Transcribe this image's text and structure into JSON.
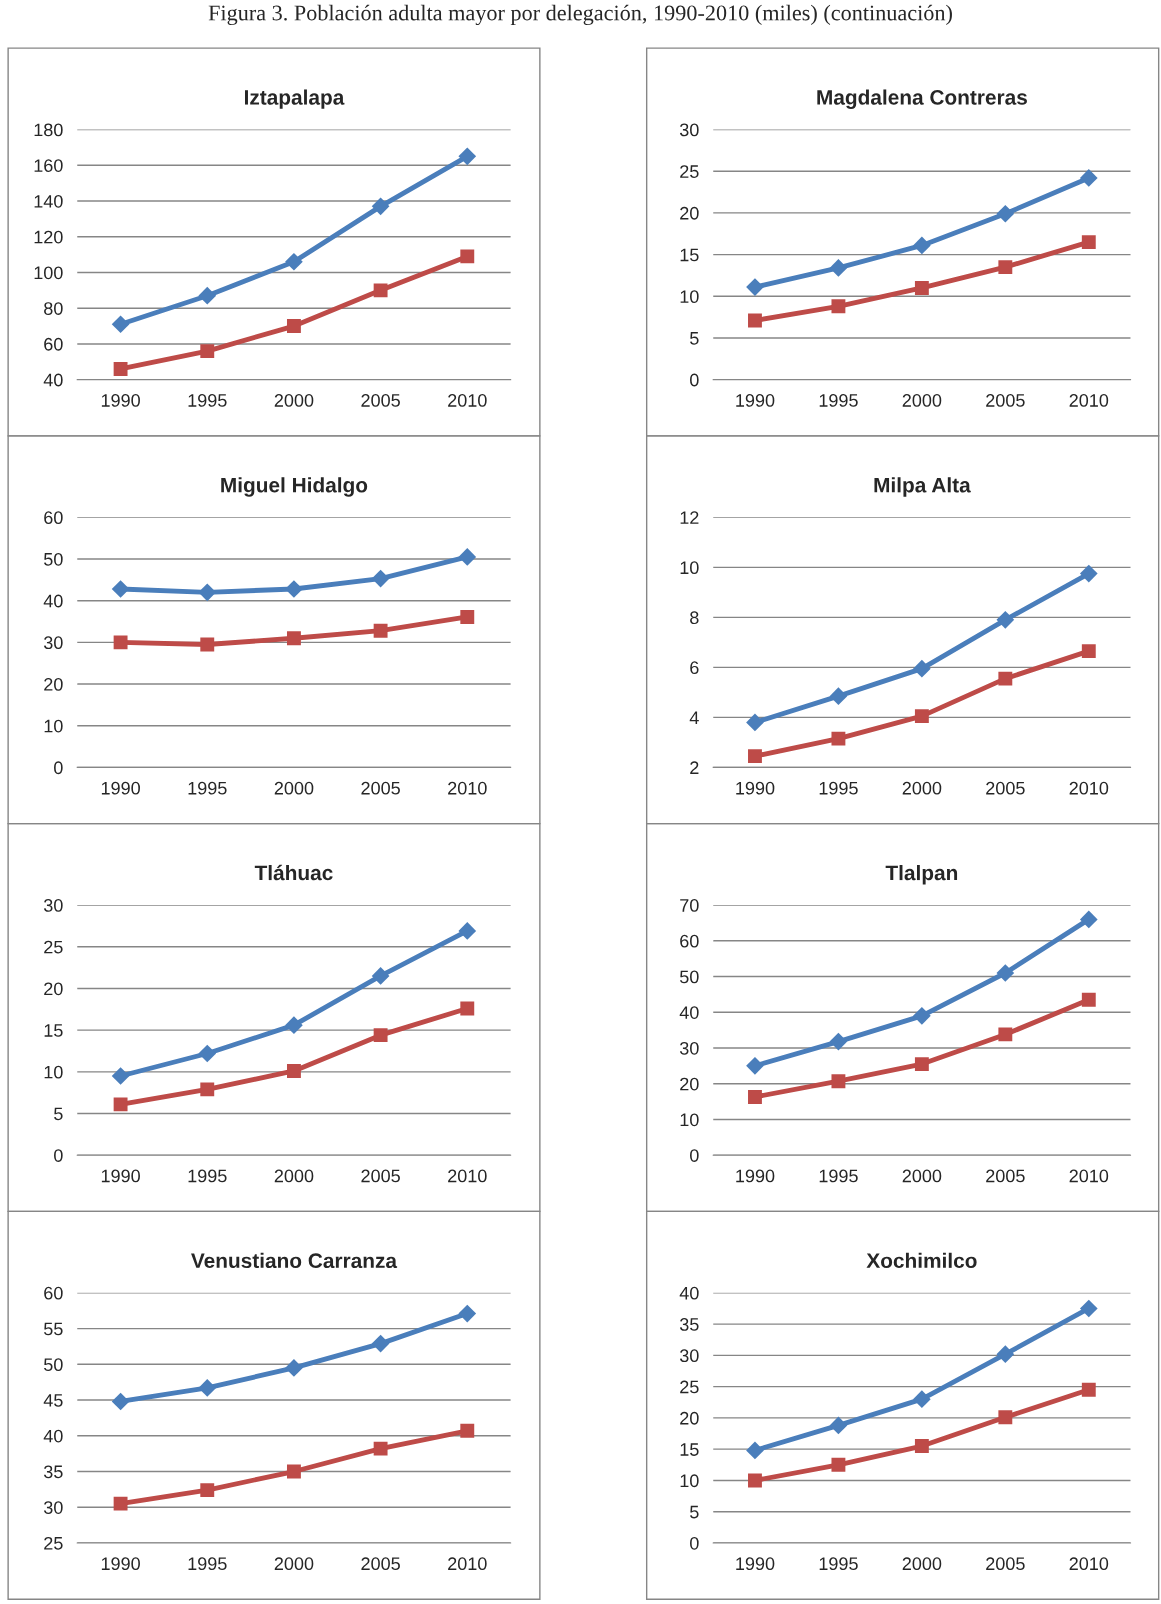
{
  "chart_data": [
    {
      "type": "line",
      "title": "Iztapalapa",
      "annotations": [
        "Figura 3. Población adulta mayor por delegación, 1990-2010 (miles) (continuación)"
      ],
      "categories": [
        "1990",
        "1995",
        "2000",
        "2005",
        "2010"
      ],
      "ylim": [
        40,
        180
      ],
      "yticks": [
        40,
        60,
        80,
        100,
        120,
        140,
        160,
        180
      ],
      "grid": "y",
      "series": [
        {
          "color": "#4a7ebb",
          "marker": "diamond",
          "values": [
            71,
            87,
            106,
            137,
            165
          ]
        },
        {
          "color": "#be4b48",
          "marker": "square",
          "values": [
            46,
            56,
            70,
            90,
            109
          ]
        }
      ]
    },
    {
      "type": "line",
      "title": "Magdalena Contreras",
      "categories": [
        "1990",
        "1995",
        "2000",
        "2005",
        "2010"
      ],
      "ylim": [
        0,
        30
      ],
      "yticks": [
        0,
        5,
        10,
        15,
        20,
        25,
        30
      ],
      "grid": "y",
      "series": [
        {
          "color": "#4a7ebb",
          "marker": "diamond",
          "values": [
            11.1,
            13.4,
            16.1,
            19.9,
            24.2
          ]
        },
        {
          "color": "#be4b48",
          "marker": "square",
          "values": [
            7.1,
            8.8,
            11.0,
            13.5,
            16.5
          ]
        }
      ]
    },
    {
      "type": "line",
      "title": "Miguel Hidalgo",
      "categories": [
        "1990",
        "1995",
        "2000",
        "2005",
        "2010"
      ],
      "ylim": [
        0,
        60
      ],
      "yticks": [
        0,
        10,
        20,
        30,
        40,
        50,
        60
      ],
      "grid": "y",
      "series": [
        {
          "color": "#4a7ebb",
          "marker": "diamond",
          "values": [
            42.8,
            42.0,
            42.8,
            45.3,
            50.5
          ]
        },
        {
          "color": "#be4b48",
          "marker": "square",
          "values": [
            30.0,
            29.5,
            31.0,
            32.8,
            36.1
          ]
        }
      ]
    },
    {
      "type": "line",
      "title": "Milpa Alta",
      "categories": [
        "1990",
        "1995",
        "2000",
        "2005",
        "2010"
      ],
      "ylim": [
        2,
        12
      ],
      "yticks": [
        2,
        4,
        6,
        8,
        10,
        12
      ],
      "grid": "y",
      "series": [
        {
          "color": "#4a7ebb",
          "marker": "diamond",
          "values": [
            3.8,
            4.85,
            5.95,
            7.9,
            9.75
          ]
        },
        {
          "color": "#be4b48",
          "marker": "square",
          "values": [
            2.45,
            3.15,
            4.05,
            5.55,
            6.65
          ]
        }
      ]
    },
    {
      "type": "line",
      "title": "Tláhuac",
      "categories": [
        "1990",
        "1995",
        "2000",
        "2005",
        "2010"
      ],
      "ylim": [
        0,
        30
      ],
      "yticks": [
        0,
        5,
        10,
        15,
        20,
        25,
        30
      ],
      "grid": "y",
      "series": [
        {
          "color": "#4a7ebb",
          "marker": "diamond",
          "values": [
            9.5,
            12.2,
            15.6,
            21.5,
            26.9
          ]
        },
        {
          "color": "#be4b48",
          "marker": "square",
          "values": [
            6.1,
            7.9,
            10.1,
            14.4,
            17.6
          ]
        }
      ]
    },
    {
      "type": "line",
      "title": "Tlalpan",
      "categories": [
        "1990",
        "1995",
        "2000",
        "2005",
        "2010"
      ],
      "ylim": [
        0,
        70
      ],
      "yticks": [
        0,
        10,
        20,
        30,
        40,
        50,
        60,
        70
      ],
      "grid": "y",
      "series": [
        {
          "color": "#4a7ebb",
          "marker": "diamond",
          "values": [
            25,
            31.8,
            39,
            51,
            66
          ]
        },
        {
          "color": "#be4b48",
          "marker": "square",
          "values": [
            16.3,
            20.7,
            25.5,
            33.8,
            43.5
          ]
        }
      ]
    },
    {
      "type": "line",
      "title": "Venustiano Carranza",
      "categories": [
        "1990",
        "1995",
        "2000",
        "2005",
        "2010"
      ],
      "ylim": [
        25,
        60
      ],
      "yticks": [
        25,
        30,
        35,
        40,
        45,
        50,
        55,
        60
      ],
      "grid": "y",
      "series": [
        {
          "color": "#4a7ebb",
          "marker": "diamond",
          "values": [
            44.8,
            46.7,
            49.5,
            52.9,
            57.1
          ]
        },
        {
          "color": "#be4b48",
          "marker": "square",
          "values": [
            30.5,
            32.4,
            35.0,
            38.2,
            40.7
          ]
        }
      ]
    },
    {
      "type": "line",
      "title": "Xochimilco",
      "categories": [
        "1990",
        "1995",
        "2000",
        "2005",
        "2010"
      ],
      "ylim": [
        0,
        40
      ],
      "yticks": [
        0,
        5,
        10,
        15,
        20,
        25,
        30,
        35,
        40
      ],
      "grid": "y",
      "series": [
        {
          "color": "#4a7ebb",
          "marker": "diamond",
          "values": [
            14.8,
            18.8,
            23.0,
            30.2,
            37.5
          ]
        },
        {
          "color": "#be4b48",
          "marker": "square",
          "values": [
            10.0,
            12.5,
            15.5,
            20.1,
            24.5
          ]
        }
      ]
    }
  ]
}
